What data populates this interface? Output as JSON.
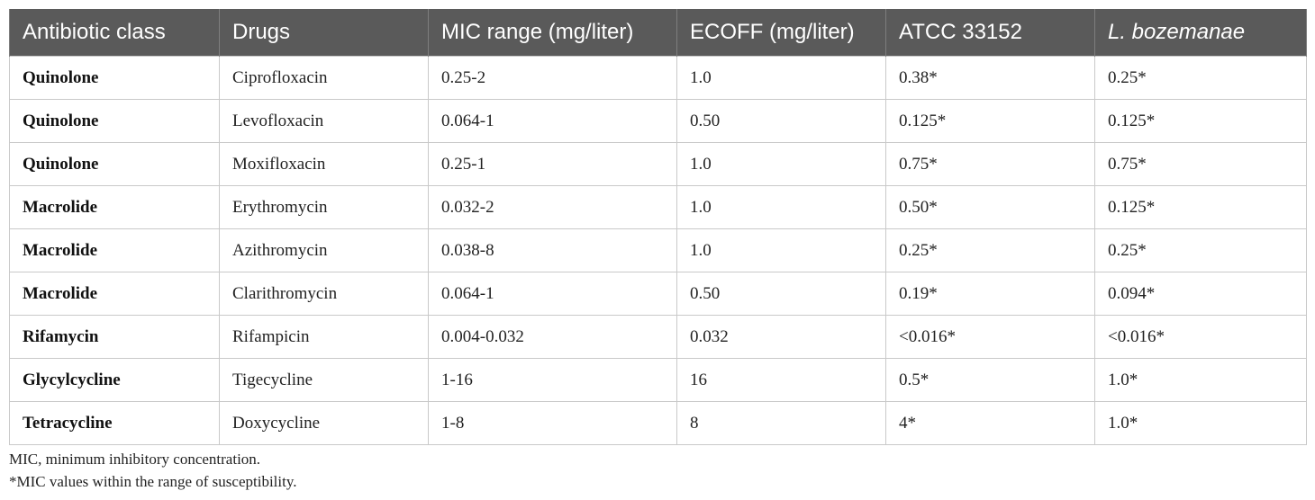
{
  "table": {
    "headers": [
      "Antibiotic class",
      "Drugs",
      "MIC range (mg/liter)",
      "ECOFF (mg/liter)",
      "ATCC 33152",
      "L. bozemanae"
    ],
    "rows": [
      [
        "Quinolone",
        "Ciprofloxacin",
        "0.25-2",
        "1.0",
        "0.38*",
        "0.25*"
      ],
      [
        "Quinolone",
        "Levofloxacin",
        "0.064-1",
        "0.50",
        "0.125*",
        "0.125*"
      ],
      [
        "Quinolone",
        "Moxifloxacin",
        "0.25-1",
        "1.0",
        "0.75*",
        "0.75*"
      ],
      [
        "Macrolide",
        "Erythromycin",
        "0.032-2",
        "1.0",
        "0.50*",
        "0.125*"
      ],
      [
        "Macrolide",
        "Azithromycin",
        "0.038-8",
        "1.0",
        "0.25*",
        "0.25*"
      ],
      [
        "Macrolide",
        "Clarithromycin",
        "0.064-1",
        "0.50",
        "0.19*",
        "0.094*"
      ],
      [
        "Rifamycin",
        "Rifampicin",
        "0.004-0.032",
        "0.032",
        "<0.016*",
        "<0.016*"
      ],
      [
        "Glycylcycline",
        "Tigecycline",
        "1-16",
        "16",
        "0.5*",
        "1.0*"
      ],
      [
        "Tetracycline",
        "Doxycycline",
        "1-8",
        "8",
        "4*",
        "1.0*"
      ]
    ]
  },
  "footnotes": [
    "MIC, minimum inhibitory concentration.",
    "*MIC values within the range of susceptibility."
  ],
  "colors": {
    "header_bg": "#5a5a5a",
    "header_text": "#ffffff",
    "grid_line": "#c9c9c9"
  }
}
